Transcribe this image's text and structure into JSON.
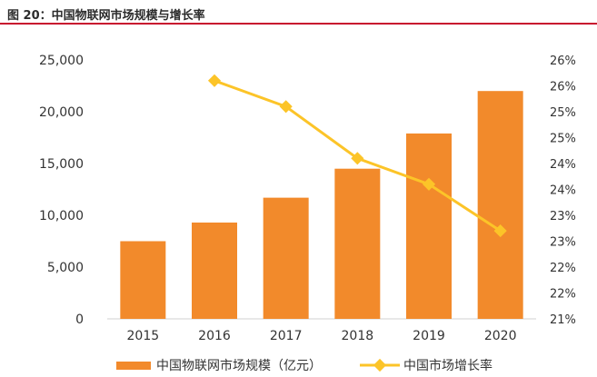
{
  "figure_title": "图 20：中国物联网市场规模与增长率",
  "colors": {
    "bar": "#f28a2b",
    "line": "#fcc428",
    "accent_rule": "#c8102e"
  },
  "chart_data": {
    "type": "bar",
    "categories": [
      "2015",
      "2016",
      "2017",
      "2018",
      "2019",
      "2020"
    ],
    "series": [
      {
        "name": "中国物联网市场规模（亿元）",
        "type": "bar",
        "axis": "left",
        "values": [
          7500,
          9300,
          11700,
          14500,
          17900,
          22000
        ]
      },
      {
        "name": "中国市场增长率",
        "type": "line",
        "axis": "right",
        "values": [
          null,
          25.6,
          25.1,
          24.1,
          23.6,
          22.7
        ]
      }
    ],
    "y_left": {
      "ylim": [
        0,
        25000
      ],
      "ticks": [
        "0",
        "5,000",
        "10,000",
        "15,000",
        "20,000",
        "25,000"
      ]
    },
    "y_right": {
      "ylim": [
        21,
        26
      ],
      "ticks": [
        "21%",
        "22%",
        "22%",
        "23%",
        "23%",
        "24%",
        "24%",
        "25%",
        "25%",
        "26%",
        "26%"
      ]
    },
    "grid": false,
    "legend_position": "bottom-center"
  }
}
